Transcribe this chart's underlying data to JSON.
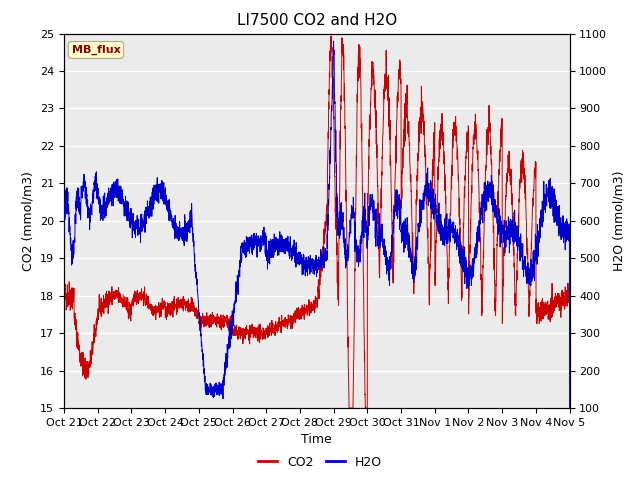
{
  "title": "LI7500 CO2 and H2O",
  "xlabel": "Time",
  "ylabel_left": "CO2 (mmol/m3)",
  "ylabel_right": "H2O (mmol/m3)",
  "ylim_left": [
    15.0,
    25.0
  ],
  "ylim_right": [
    100,
    1100
  ],
  "yticks_left": [
    15.0,
    16.0,
    17.0,
    18.0,
    19.0,
    20.0,
    21.0,
    22.0,
    23.0,
    24.0,
    25.0
  ],
  "yticks_right": [
    100,
    200,
    300,
    400,
    500,
    600,
    700,
    800,
    900,
    1000,
    1100
  ],
  "color_co2": "#cc0000",
  "color_h2o": "#0000cc",
  "plot_bg": "#ebebeb",
  "legend_label_co2": "CO2",
  "legend_label_h2o": "H2O",
  "watermark_text": "MB_flux",
  "watermark_color": "#8B0000",
  "watermark_bg": "#ffffcc",
  "xtick_labels": [
    "Oct 21",
    "Oct 22",
    "Oct 23",
    "Oct 24",
    "Oct 25",
    "Oct 26",
    "Oct 27",
    "Oct 28",
    "Oct 29",
    "Oct 30",
    "Oct 31",
    "Nov 1",
    "Nov 2",
    "Nov 3",
    "Nov 4",
    "Nov 5"
  ],
  "n_points": 3000,
  "title_fontsize": 11,
  "label_fontsize": 9,
  "tick_fontsize": 8
}
